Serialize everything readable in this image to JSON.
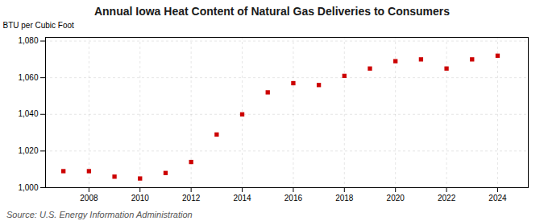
{
  "chart_data": {
    "type": "scatter",
    "title": "Annual Iowa Heat Content of Natural Gas Deliveries to Consumers",
    "ylabel": "BTU per Cubic Foot",
    "source": "Source: U.S. Energy Information Administration",
    "x": [
      2007,
      2008,
      2009,
      2010,
      2011,
      2012,
      2013,
      2014,
      2015,
      2016,
      2017,
      2018,
      2019,
      2020,
      2021,
      2022,
      2023,
      2024
    ],
    "values": [
      1009,
      1009,
      1006,
      1005,
      1008,
      1014,
      1029,
      1040,
      1052,
      1057,
      1056,
      1061,
      1065,
      1069,
      1070,
      1065,
      1070,
      1072
    ],
    "color": "#cc0000",
    "marker": "square",
    "xlim": [
      2006.3,
      2025.2
    ],
    "xticks": [
      2008,
      2010,
      2012,
      2014,
      2016,
      2018,
      2020,
      2022,
      2024
    ],
    "ylim": [
      1000,
      1082
    ],
    "yticks": [
      {
        "value": 1000,
        "label": "1,000"
      },
      {
        "value": 1020,
        "label": "1,020"
      },
      {
        "value": 1040,
        "label": "1,040"
      },
      {
        "value": 1060,
        "label": "1,060"
      },
      {
        "value": 1080,
        "label": "1,080"
      }
    ],
    "grid": true
  }
}
